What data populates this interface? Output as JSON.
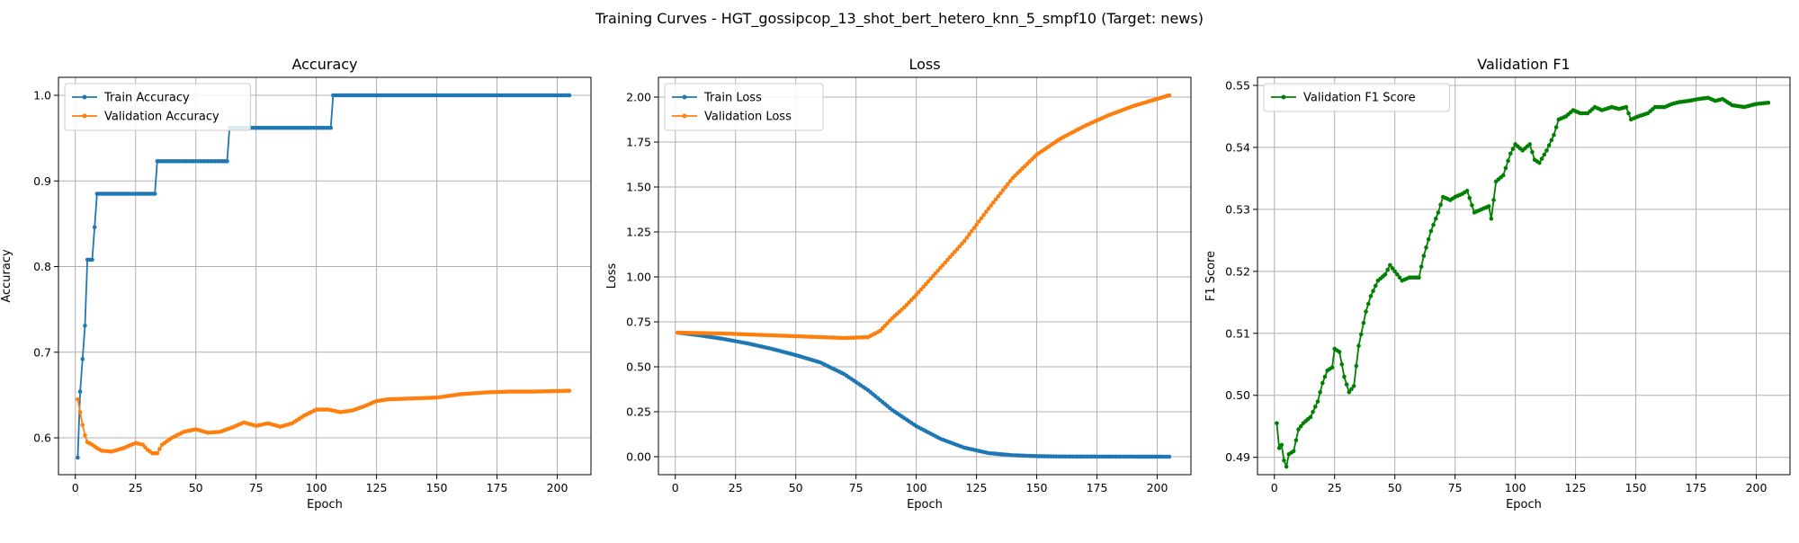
{
  "figure_title": "Training Curves - HGT_gossipcop_13_shot_bert_hetero_knn_5_smpf10 (Target: news)",
  "colors": {
    "blue": "#1f77b4",
    "orange": "#ff7f0e",
    "green": "#008000"
  },
  "chart_data": [
    {
      "type": "line",
      "title": "Accuracy",
      "xlabel": "Epoch",
      "ylabel": "Accuracy",
      "xlim": [
        -7,
        214
      ],
      "ylim": [
        0.557,
        1.021
      ],
      "xticks": [
        0,
        25,
        50,
        75,
        100,
        125,
        150,
        175,
        200
      ],
      "yticks": [
        0.6,
        0.7,
        0.8,
        0.9,
        1.0
      ],
      "ytick_format": 1,
      "legend_position": "upper-left",
      "grid": true,
      "x_range": [
        1,
        205
      ],
      "series": [
        {
          "name": "Train Accuracy",
          "color": "#1f77b4",
          "points": [
            [
              1,
              0.577
            ],
            [
              2,
              0.654
            ],
            [
              3,
              0.692
            ],
            [
              4,
              0.731
            ],
            [
              5,
              0.808
            ],
            [
              7,
              0.808
            ],
            [
              8,
              0.846
            ],
            [
              9,
              0.885
            ],
            [
              33,
              0.885
            ],
            [
              34,
              0.923
            ],
            [
              63,
              0.923
            ],
            [
              64,
              0.962
            ],
            [
              106,
              0.962
            ],
            [
              107,
              1.0
            ],
            [
              205,
              1.0
            ]
          ]
        },
        {
          "name": "Validation Accuracy",
          "color": "#ff7f0e",
          "points": [
            [
              1,
              0.645
            ],
            [
              2,
              0.63
            ],
            [
              3,
              0.615
            ],
            [
              4,
              0.603
            ],
            [
              5,
              0.595
            ],
            [
              7,
              0.592
            ],
            [
              9,
              0.588
            ],
            [
              11,
              0.585
            ],
            [
              15,
              0.584
            ],
            [
              20,
              0.588
            ],
            [
              25,
              0.594
            ],
            [
              28,
              0.592
            ],
            [
              30,
              0.586
            ],
            [
              32,
              0.582
            ],
            [
              34,
              0.582
            ],
            [
              36,
              0.592
            ],
            [
              40,
              0.6
            ],
            [
              45,
              0.607
            ],
            [
              50,
              0.61
            ],
            [
              55,
              0.606
            ],
            [
              60,
              0.607
            ],
            [
              65,
              0.612
            ],
            [
              70,
              0.618
            ],
            [
              75,
              0.614
            ],
            [
              80,
              0.617
            ],
            [
              85,
              0.613
            ],
            [
              90,
              0.617
            ],
            [
              95,
              0.626
            ],
            [
              100,
              0.633
            ],
            [
              105,
              0.633
            ],
            [
              110,
              0.63
            ],
            [
              115,
              0.632
            ],
            [
              120,
              0.637
            ],
            [
              125,
              0.643
            ],
            [
              130,
              0.645
            ],
            [
              140,
              0.646
            ],
            [
              150,
              0.647
            ],
            [
              160,
              0.651
            ],
            [
              170,
              0.653
            ],
            [
              180,
              0.654
            ],
            [
              190,
              0.654
            ],
            [
              205,
              0.655
            ]
          ]
        }
      ]
    },
    {
      "type": "line",
      "title": "Loss",
      "xlabel": "Epoch",
      "ylabel": "Loss",
      "xlim": [
        -7,
        214
      ],
      "ylim": [
        -0.1,
        2.11
      ],
      "xticks": [
        0,
        25,
        50,
        75,
        100,
        125,
        150,
        175,
        200
      ],
      "yticks": [
        0.0,
        0.25,
        0.5,
        0.75,
        1.0,
        1.25,
        1.5,
        1.75,
        2.0
      ],
      "ytick_format": 2,
      "legend_position": "upper-left",
      "grid": true,
      "x_range": [
        1,
        205
      ],
      "series": [
        {
          "name": "Train Loss",
          "color": "#1f77b4",
          "points": [
            [
              1,
              0.69
            ],
            [
              10,
              0.675
            ],
            [
              20,
              0.655
            ],
            [
              30,
              0.63
            ],
            [
              40,
              0.6
            ],
            [
              50,
              0.565
            ],
            [
              60,
              0.525
            ],
            [
              70,
              0.46
            ],
            [
              80,
              0.37
            ],
            [
              90,
              0.26
            ],
            [
              100,
              0.17
            ],
            [
              110,
              0.1
            ],
            [
              120,
              0.05
            ],
            [
              130,
              0.02
            ],
            [
              140,
              0.008
            ],
            [
              150,
              0.003
            ],
            [
              160,
              0.001
            ],
            [
              205,
              0.0
            ]
          ]
        },
        {
          "name": "Validation Loss",
          "color": "#ff7f0e",
          "points": [
            [
              1,
              0.69
            ],
            [
              20,
              0.685
            ],
            [
              40,
              0.675
            ],
            [
              60,
              0.665
            ],
            [
              70,
              0.66
            ],
            [
              80,
              0.665
            ],
            [
              85,
              0.7
            ],
            [
              90,
              0.77
            ],
            [
              95,
              0.83
            ],
            [
              100,
              0.9
            ],
            [
              110,
              1.05
            ],
            [
              120,
              1.2
            ],
            [
              130,
              1.38
            ],
            [
              140,
              1.55
            ],
            [
              150,
              1.68
            ],
            [
              160,
              1.77
            ],
            [
              170,
              1.84
            ],
            [
              180,
              1.9
            ],
            [
              190,
              1.95
            ],
            [
              205,
              2.01
            ]
          ]
        }
      ]
    },
    {
      "type": "line",
      "title": "Validation F1",
      "xlabel": "Epoch",
      "ylabel": "F1 Score",
      "xlim": [
        -7,
        214
      ],
      "ylim": [
        0.4872,
        0.5513
      ],
      "xticks": [
        0,
        25,
        50,
        75,
        100,
        125,
        150,
        175,
        200
      ],
      "yticks": [
        0.49,
        0.5,
        0.51,
        0.52,
        0.53,
        0.54,
        0.55
      ],
      "ytick_format": 2,
      "legend_position": "upper-left",
      "grid": true,
      "x_range": [
        1,
        205
      ],
      "series": [
        {
          "name": "Validation F1 Score",
          "color": "#008000",
          "points": [
            [
              1,
              0.4955
            ],
            [
              2,
              0.4915
            ],
            [
              3,
              0.492
            ],
            [
              4,
              0.4895
            ],
            [
              5,
              0.4885
            ],
            [
              6,
              0.4905
            ],
            [
              8,
              0.491
            ],
            [
              10,
              0.4945
            ],
            [
              12,
              0.4955
            ],
            [
              15,
              0.4965
            ],
            [
              18,
              0.499
            ],
            [
              20,
              0.502
            ],
            [
              22,
              0.504
            ],
            [
              24,
              0.5045
            ],
            [
              25,
              0.5075
            ],
            [
              27,
              0.507
            ],
            [
              29,
              0.503
            ],
            [
              31,
              0.5005
            ],
            [
              33,
              0.5015
            ],
            [
              35,
              0.508
            ],
            [
              38,
              0.5135
            ],
            [
              40,
              0.516
            ],
            [
              43,
              0.5185
            ],
            [
              46,
              0.5195
            ],
            [
              48,
              0.521
            ],
            [
              50,
              0.52
            ],
            [
              53,
              0.5185
            ],
            [
              56,
              0.519
            ],
            [
              60,
              0.519
            ],
            [
              62,
              0.5225
            ],
            [
              65,
              0.5265
            ],
            [
              68,
              0.5295
            ],
            [
              70,
              0.532
            ],
            [
              73,
              0.5315
            ],
            [
              75,
              0.532
            ],
            [
              78,
              0.5325
            ],
            [
              80,
              0.533
            ],
            [
              83,
              0.5295
            ],
            [
              86,
              0.53
            ],
            [
              89,
              0.5305
            ],
            [
              90,
              0.5285
            ],
            [
              92,
              0.5345
            ],
            [
              95,
              0.5355
            ],
            [
              98,
              0.539
            ],
            [
              100,
              0.5405
            ],
            [
              103,
              0.5395
            ],
            [
              106,
              0.5405
            ],
            [
              108,
              0.538
            ],
            [
              110,
              0.5375
            ],
            [
              113,
              0.5395
            ],
            [
              116,
              0.542
            ],
            [
              118,
              0.5445
            ],
            [
              121,
              0.545
            ],
            [
              124,
              0.546
            ],
            [
              127,
              0.5455
            ],
            [
              130,
              0.5455
            ],
            [
              133,
              0.5465
            ],
            [
              136,
              0.546
            ],
            [
              140,
              0.5465
            ],
            [
              143,
              0.5462
            ],
            [
              146,
              0.5465
            ],
            [
              148,
              0.5445
            ],
            [
              151,
              0.545
            ],
            [
              155,
              0.5455
            ],
            [
              158,
              0.5465
            ],
            [
              162,
              0.5465
            ],
            [
              165,
              0.547
            ],
            [
              168,
              0.5473
            ],
            [
              172,
              0.5475
            ],
            [
              176,
              0.5478
            ],
            [
              180,
              0.548
            ],
            [
              183,
              0.5475
            ],
            [
              186,
              0.5478
            ],
            [
              190,
              0.5468
            ],
            [
              195,
              0.5465
            ],
            [
              200,
              0.547
            ],
            [
              205,
              0.5472
            ]
          ]
        }
      ]
    }
  ]
}
